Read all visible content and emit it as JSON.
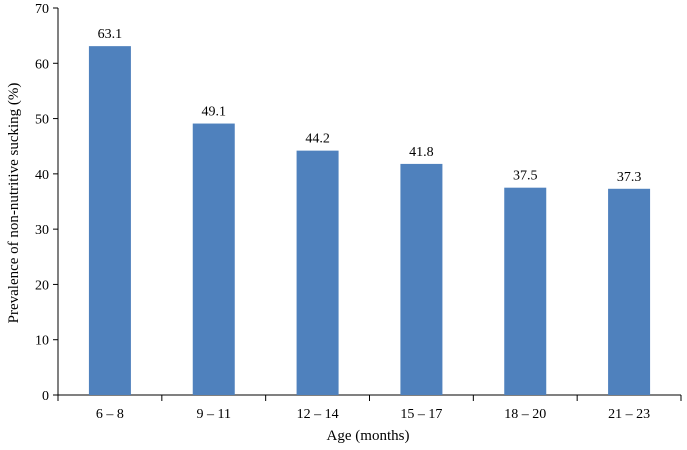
{
  "chart_data": {
    "type": "bar",
    "categories": [
      "6 – 8",
      "9 – 11",
      "12 – 14",
      "15 – 17",
      "18 – 20",
      "21 – 23"
    ],
    "values": [
      63.1,
      49.1,
      44.2,
      41.8,
      37.5,
      37.3
    ],
    "data_labels": [
      "63.1",
      "49.1",
      "44.2",
      "41.8",
      "37.5",
      "37.3"
    ],
    "xlabel": "Age (months)",
    "ylabel": "Prevalence of non-nutritive sucking (%)",
    "ylim": [
      0,
      70
    ],
    "yticks": [
      0,
      10,
      20,
      30,
      40,
      50,
      60,
      70
    ],
    "grid": false,
    "legend": "none",
    "bar_color": "#4f81bd"
  }
}
